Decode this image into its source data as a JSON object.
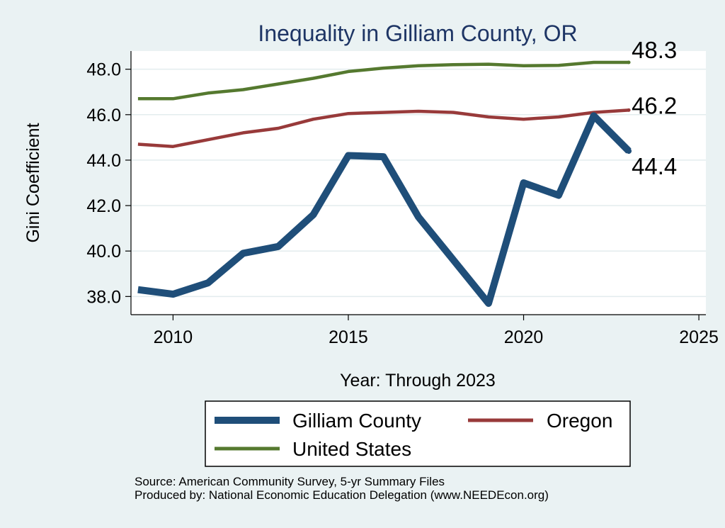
{
  "chart_data": {
    "type": "line",
    "title": "Inequality in Gilliam County, OR",
    "xlabel": "Year: Through 2023",
    "ylabel": "Gini Coefficient",
    "xlim": [
      2008.8,
      2025.2
    ],
    "ylim": [
      37.2,
      48.8
    ],
    "xticks": [
      2010,
      2015,
      2020,
      2025
    ],
    "yticks": [
      38.0,
      40.0,
      42.0,
      44.0,
      46.0,
      48.0
    ],
    "grid": true,
    "legend_position": "bottom",
    "x": [
      2009,
      2010,
      2011,
      2012,
      2013,
      2014,
      2015,
      2016,
      2017,
      2018,
      2019,
      2020,
      2021,
      2022,
      2023
    ],
    "series": [
      {
        "name": "Gilliam County",
        "color": "#1f4e79",
        "values": [
          38.3,
          38.1,
          38.6,
          39.9,
          40.2,
          41.6,
          44.2,
          44.15,
          41.5,
          39.6,
          37.7,
          43.0,
          42.45,
          45.95,
          44.4
        ],
        "end_label": "44.4"
      },
      {
        "name": "Oregon",
        "color": "#983a3a",
        "values": [
          44.7,
          44.6,
          44.9,
          45.2,
          45.4,
          45.8,
          46.05,
          46.1,
          46.15,
          46.1,
          45.9,
          45.8,
          45.9,
          46.1,
          46.2
        ],
        "end_label": "46.2"
      },
      {
        "name": "United States",
        "color": "#55792f",
        "values": [
          46.7,
          46.7,
          46.95,
          47.1,
          47.35,
          47.6,
          47.9,
          48.05,
          48.15,
          48.2,
          48.22,
          48.15,
          48.17,
          48.3,
          48.3
        ],
        "end_label": "48.3"
      }
    ]
  },
  "footer": {
    "source": "Source: American Community Survey, 5-yr Summary Files",
    "produced": "Produced by: National Economic Education Delegation (www.NEEDEcon.org)"
  }
}
